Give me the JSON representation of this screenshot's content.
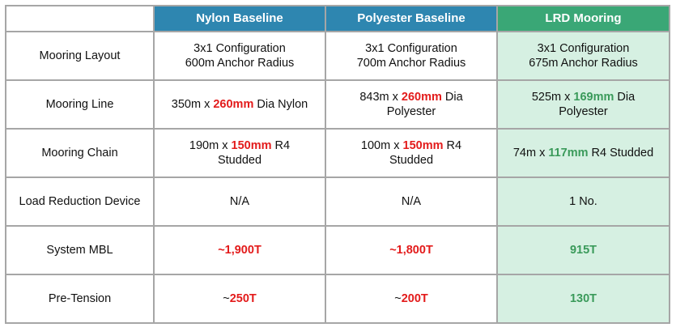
{
  "colors": {
    "header_blue": "#2e86b0",
    "header_green": "#3aa776",
    "lrd_fill": "#d6f0e2",
    "red": "#e31b1b",
    "green": "#3a9a5a"
  },
  "headers": [
    "Nylon Baseline",
    "Polyester Baseline",
    "LRD Mooring"
  ],
  "rows": [
    {
      "label": "Mooring Layout",
      "cells": [
        [
          {
            "t": "3x1 Configuration"
          },
          {
            "br": true
          },
          {
            "t": "600m Anchor Radius"
          }
        ],
        [
          {
            "t": "3x1 Configuration"
          },
          {
            "br": true
          },
          {
            "t": "700m Anchor Radius"
          }
        ],
        [
          {
            "t": "3x1 Configuration"
          },
          {
            "br": true
          },
          {
            "t": "675m Anchor Radius"
          }
        ]
      ]
    },
    {
      "label": "Mooring Line",
      "cells": [
        [
          {
            "t": "350m x "
          },
          {
            "t": "260mm",
            "c": "red"
          },
          {
            "t": " Dia Nylon"
          }
        ],
        [
          {
            "t": "843m x "
          },
          {
            "t": "260mm",
            "c": "red"
          },
          {
            "t": " Dia"
          },
          {
            "br": true
          },
          {
            "t": "Polyester"
          }
        ],
        [
          {
            "t": "525m x "
          },
          {
            "t": "169mm",
            "c": "green"
          },
          {
            "t": " Dia"
          },
          {
            "br": true
          },
          {
            "t": "Polyester"
          }
        ]
      ]
    },
    {
      "label": "Mooring Chain",
      "cells": [
        [
          {
            "t": "190m x "
          },
          {
            "t": "150mm",
            "c": "red"
          },
          {
            "t": " R4"
          },
          {
            "br": true
          },
          {
            "t": "Studded"
          }
        ],
        [
          {
            "t": "100m x "
          },
          {
            "t": "150mm",
            "c": "red"
          },
          {
            "t": " R4"
          },
          {
            "br": true
          },
          {
            "t": "Studded"
          }
        ],
        [
          {
            "t": "74m x "
          },
          {
            "t": "117mm",
            "c": "green"
          },
          {
            "t": " R4 Studded"
          }
        ]
      ]
    },
    {
      "label": "Load Reduction Device",
      "cells": [
        [
          {
            "t": "N/A"
          }
        ],
        [
          {
            "t": "N/A"
          }
        ],
        [
          {
            "t": "1 No."
          }
        ]
      ]
    },
    {
      "label": "System MBL",
      "cells": [
        [
          {
            "t": "~1,900T",
            "c": "red"
          }
        ],
        [
          {
            "t": "~1,800T",
            "c": "red"
          }
        ],
        [
          {
            "t": "915T",
            "c": "green"
          }
        ]
      ]
    },
    {
      "label": "Pre-Tension",
      "cells": [
        [
          {
            "t": "~"
          },
          {
            "t": "250T",
            "c": "red"
          }
        ],
        [
          {
            "t": "~"
          },
          {
            "t": "200T",
            "c": "red"
          }
        ],
        [
          {
            "t": "130T",
            "c": "green"
          }
        ]
      ]
    }
  ]
}
